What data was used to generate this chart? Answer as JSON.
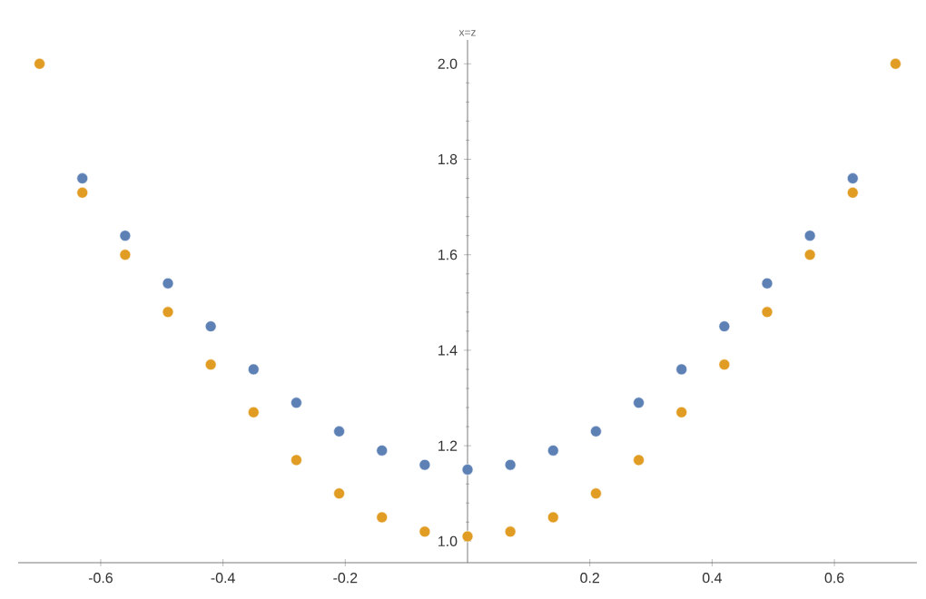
{
  "chart_data": {
    "type": "scatter",
    "ylabel": "x=z",
    "x": [
      -0.7,
      -0.63,
      -0.56,
      -0.49,
      -0.42,
      -0.35,
      -0.28,
      -0.21,
      -0.14,
      -0.07,
      0,
      0.07,
      0.14,
      0.21,
      0.28,
      0.35,
      0.42,
      0.49,
      0.56,
      0.63,
      0.7
    ],
    "series": [
      {
        "color": "#5e81b5",
        "values": [
          null,
          1.76,
          1.64,
          1.54,
          1.45,
          1.36,
          1.29,
          1.23,
          1.19,
          1.16,
          1.15,
          1.16,
          1.19,
          1.23,
          1.29,
          1.36,
          1.45,
          1.54,
          1.64,
          1.76,
          null
        ]
      },
      {
        "color": "#e19c24",
        "values": [
          2.0,
          1.73,
          1.6,
          1.48,
          1.37,
          1.27,
          1.17,
          1.1,
          1.05,
          1.02,
          1.01,
          1.02,
          1.05,
          1.1,
          1.17,
          1.27,
          1.37,
          1.48,
          1.6,
          1.73,
          2.0
        ]
      }
    ],
    "xlim": [
      -0.735,
      0.735
    ],
    "ylim": [
      0.955,
      2.05
    ],
    "xticks": [
      -0.6,
      -0.4,
      -0.2,
      0.2,
      0.4,
      0.6
    ],
    "yticks": [
      {
        "value": 1.0,
        "label": "1.0"
      },
      {
        "value": 1.2,
        "label": "1.2"
      },
      {
        "value": 1.4,
        "label": "1.4"
      },
      {
        "value": 1.6,
        "label": "1.6"
      },
      {
        "value": 1.8,
        "label": "1.8"
      },
      {
        "value": 2.0,
        "label": "2.0"
      }
    ],
    "marker": "circle",
    "grid": false
  }
}
